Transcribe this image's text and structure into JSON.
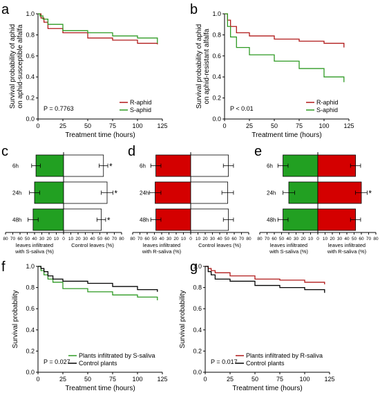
{
  "colors": {
    "red": "#b01818",
    "green": "#2e9a23",
    "black": "#000000",
    "bar_red": "#d40000",
    "bar_green": "#22a022"
  },
  "chart_data": [
    {
      "panel": "a",
      "type": "line",
      "ylabel": "Survival probability of aphid on aphid-susceptible alfalfa",
      "xlabel": "Treatment time (hours)",
      "xlim": [
        0,
        125
      ],
      "ylim": [
        0,
        1.0
      ],
      "xticks": [
        "0",
        "25",
        "50",
        "75",
        "100",
        "125"
      ],
      "yticks": [
        "0.0",
        "0.2",
        "0.4",
        "0.6",
        "0.8",
        "1.0"
      ],
      "annotation": "P = 0.7763",
      "series": [
        {
          "name": "R-aphid",
          "color": "red",
          "x": [
            0,
            3,
            6,
            10,
            25,
            50,
            75,
            100,
            120
          ],
          "y": [
            1.0,
            0.96,
            0.92,
            0.86,
            0.82,
            0.77,
            0.75,
            0.72,
            0.71
          ]
        },
        {
          "name": "S-aphid",
          "color": "green",
          "x": [
            0,
            2,
            5,
            10,
            25,
            50,
            75,
            100,
            120
          ],
          "y": [
            1.0,
            0.98,
            0.95,
            0.9,
            0.84,
            0.82,
            0.79,
            0.77,
            0.72
          ]
        }
      ],
      "legend": "bottom-right"
    },
    {
      "panel": "b",
      "type": "line",
      "ylabel": "Survival probability of aphid on aphid-resistant alfalfa",
      "xlabel": "Treatment time (hours)",
      "xlim": [
        0,
        125
      ],
      "ylim": [
        0,
        1.0
      ],
      "xticks": [
        "0",
        "25",
        "50",
        "75",
        "100",
        "125"
      ],
      "yticks": [
        "0.0",
        "0.2",
        "0.4",
        "0.6",
        "0.8",
        "1.0"
      ],
      "annotation": "P < 0.01",
      "series": [
        {
          "name": "R-aphid",
          "color": "red",
          "x": [
            0,
            3,
            6,
            12,
            25,
            50,
            75,
            100,
            120
          ],
          "y": [
            1.0,
            0.94,
            0.88,
            0.82,
            0.79,
            0.76,
            0.74,
            0.72,
            0.68
          ]
        },
        {
          "name": "S-aphid",
          "color": "green",
          "x": [
            0,
            3,
            6,
            12,
            25,
            50,
            75,
            100,
            120
          ],
          "y": [
            1.0,
            0.88,
            0.78,
            0.68,
            0.61,
            0.55,
            0.48,
            0.4,
            0.35
          ]
        }
      ],
      "legend": "bottom-right"
    },
    {
      "panel": "c",
      "type": "bar",
      "categories": [
        "6h",
        "24h",
        "48h"
      ],
      "xticks": [
        "80",
        "70",
        "60",
        "50",
        "40",
        "30",
        "20",
        "10",
        "0",
        "10",
        "20",
        "30",
        "40",
        "50",
        "60",
        "70",
        "80"
      ],
      "left_label": "leaves infiltrated with S-saliva (%)",
      "right_label": "Control leaves (%)",
      "left_color": "green",
      "right_color": "white",
      "left_values": [
        38,
        40,
        42
      ],
      "left_err": [
        6,
        7,
        7
      ],
      "right_values": [
        55,
        60,
        52
      ],
      "right_err": [
        6,
        8,
        6
      ],
      "significant": [
        true,
        true,
        true
      ]
    },
    {
      "panel": "d",
      "type": "bar",
      "categories": [
        "6h",
        "24h",
        "48h"
      ],
      "xticks": [
        "80",
        "70",
        "60",
        "50",
        "40",
        "30",
        "20",
        "10",
        "0",
        "10",
        "20",
        "30",
        "40",
        "50",
        "60",
        "70",
        "80"
      ],
      "left_label": "leaves infiltrated with R-saliva (%)",
      "right_label": "Control leaves (%)",
      "left_color": "red",
      "right_color": "white",
      "left_values": [
        48,
        49,
        48
      ],
      "left_err": [
        7,
        8,
        7
      ],
      "right_values": [
        52,
        51,
        52
      ],
      "right_err": [
        7,
        8,
        7
      ],
      "significant": [
        false,
        false,
        false
      ]
    },
    {
      "panel": "e",
      "type": "bar",
      "categories": [
        "6h",
        "24h",
        "48h"
      ],
      "xticks": [
        "80",
        "70",
        "60",
        "50",
        "40",
        "30",
        "20",
        "10",
        "0",
        "10",
        "20",
        "30",
        "40",
        "50",
        "60",
        "70",
        "80"
      ],
      "left_label": "leaves infiltrated with S-saliva (%)",
      "right_label": "leaves infiltrated with R-saliva (%)",
      "left_color": "green",
      "right_color": "red",
      "left_values": [
        48,
        40,
        48
      ],
      "left_err": [
        7,
        8,
        7
      ],
      "right_values": [
        52,
        60,
        52
      ],
      "right_err": [
        7,
        8,
        7
      ],
      "significant": [
        false,
        true,
        false
      ]
    },
    {
      "panel": "f",
      "type": "line",
      "ylabel": "Survival probability",
      "xlabel": "Treatment time (hours)",
      "xlim": [
        0,
        125
      ],
      "ylim": [
        0,
        1.0
      ],
      "xticks": [
        "0",
        "25",
        "50",
        "75",
        "100",
        "125"
      ],
      "yticks": [
        "0.0",
        "0.2",
        "0.4",
        "0.6",
        "0.8",
        "1.0"
      ],
      "annotation": "P = 0.027",
      "series": [
        {
          "name": "Plants infiltrated by S-saliva",
          "color": "green",
          "x": [
            0,
            3,
            6,
            10,
            15,
            25,
            50,
            75,
            100,
            120
          ],
          "y": [
            1.0,
            0.96,
            0.92,
            0.88,
            0.85,
            0.79,
            0.76,
            0.73,
            0.71,
            0.68
          ]
        },
        {
          "name": "Control plants",
          "color": "black",
          "x": [
            0,
            3,
            6,
            10,
            15,
            25,
            50,
            75,
            100,
            120
          ],
          "y": [
            1.0,
            0.98,
            0.95,
            0.91,
            0.88,
            0.86,
            0.84,
            0.81,
            0.78,
            0.76
          ]
        }
      ],
      "legend": "bottom-right"
    },
    {
      "panel": "g",
      "type": "line",
      "ylabel": "Survival probability",
      "xlabel": "Treatment time (hours)",
      "xlim": [
        0,
        125
      ],
      "ylim": [
        0,
        1.0
      ],
      "xticks": [
        "0",
        "25",
        "50",
        "75",
        "100",
        "125"
      ],
      "yticks": [
        "0.0",
        "0.2",
        "0.4",
        "0.6",
        "0.8",
        "1.0"
      ],
      "annotation": "P = 0.017",
      "series": [
        {
          "name": "Plants infiltrated by R-saliva",
          "color": "red",
          "x": [
            0,
            3,
            6,
            10,
            25,
            50,
            75,
            100,
            120
          ],
          "y": [
            1.0,
            0.98,
            0.96,
            0.94,
            0.91,
            0.88,
            0.87,
            0.85,
            0.83
          ]
        },
        {
          "name": "Control plants",
          "color": "black",
          "x": [
            0,
            3,
            6,
            10,
            25,
            50,
            75,
            100,
            120
          ],
          "y": [
            1.0,
            0.95,
            0.92,
            0.88,
            0.86,
            0.82,
            0.8,
            0.78,
            0.75
          ]
        }
      ],
      "legend": "bottom-right"
    }
  ]
}
